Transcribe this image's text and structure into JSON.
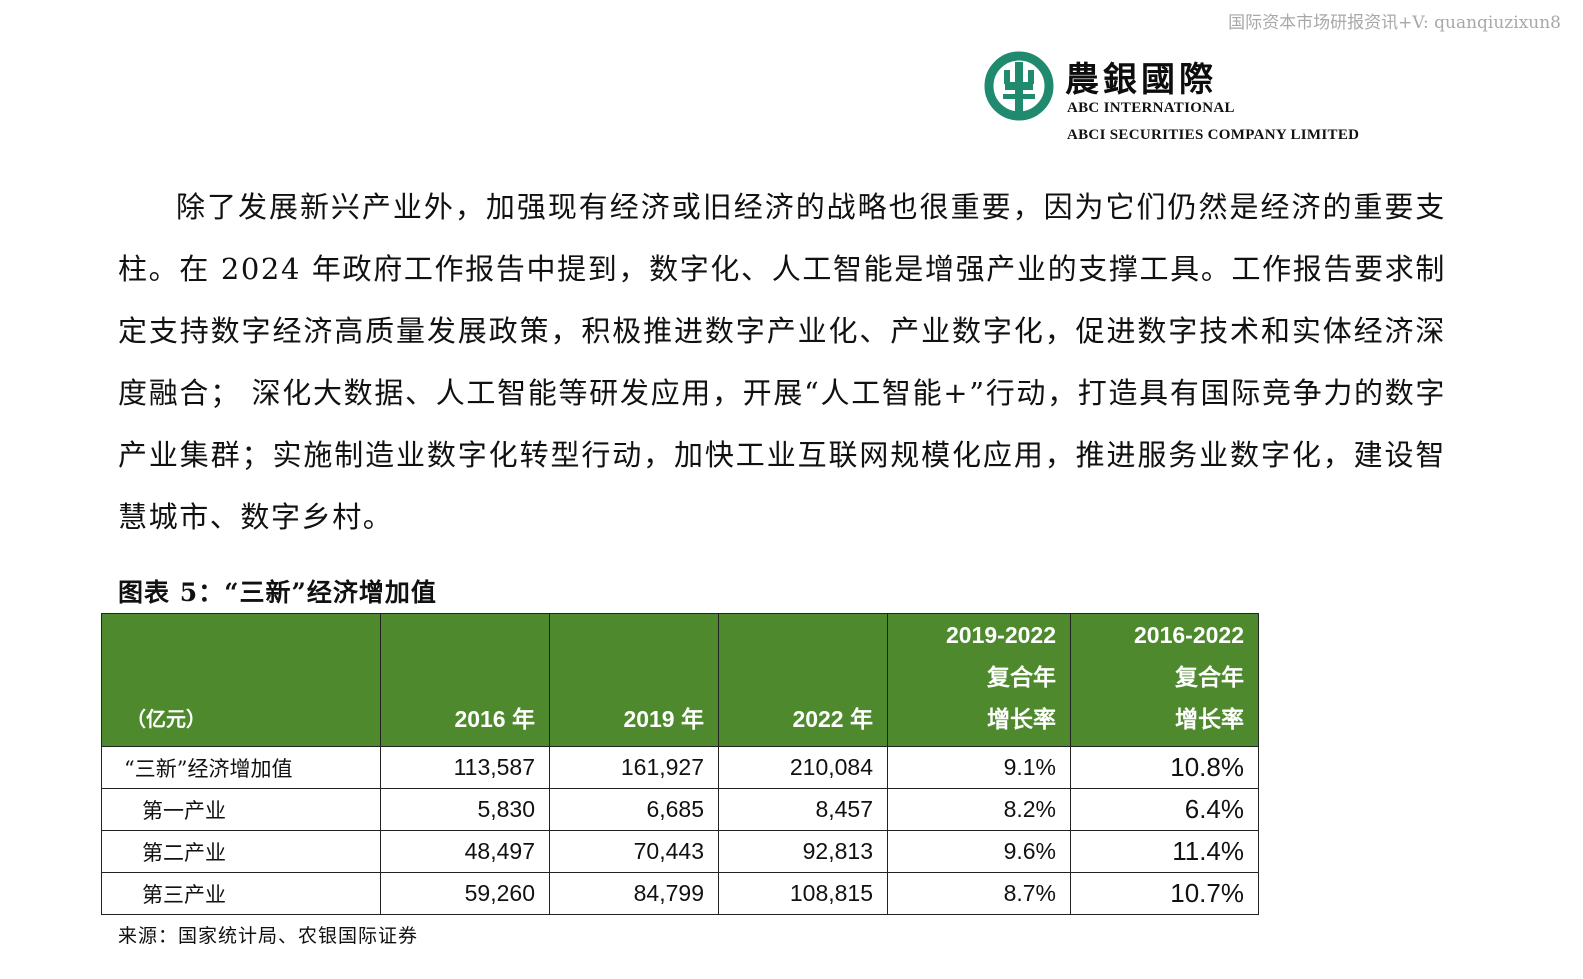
{
  "watermark": "国际资本市场研报资讯+V: quanqiuzixun8",
  "logo": {
    "cn": "農銀國際",
    "en_line1": "ABC INTERNATIONAL",
    "en_line2": "ABCI SECURITIES COMPANY LIMITED",
    "color": "#1f8a6e"
  },
  "paragraph": "除了发展新兴产业外，加强现有经济或旧经济的战略也很重要，因为它们仍然是经济的重要支柱。在 2024 年政府工作报告中提到，数字化、人工智能是增强产业的支撑工具。工作报告要求制定支持数字经济高质量发展政策，积极推进数字产业化、产业数字化，促进数字技术和实体经济深度融合； 深化大数据、人工智能等研发应用，开展“人工智能+”行动，打造具有国际竞争力的数字产业集群；实施制造业数字化转型行动，加快工业互联网规模化应用，推进服务业数字化，建设智慧城市、数字乡村。",
  "table_title": "图表 5：“三新”经济增加值",
  "table": {
    "header_color": "#4e8a2d",
    "headers": {
      "unit": "（亿元）",
      "y2016": "2016 年",
      "y2019": "2019 年",
      "y2022": "2022 年",
      "cagr1_period": "2019-2022",
      "cagr1_l1": "复合年",
      "cagr1_l2": "增长率",
      "cagr2_period": "2016-2022",
      "cagr2_l1": "复合年",
      "cagr2_l2": "增长率"
    },
    "rows": [
      {
        "label": "“三新”经济增加值",
        "v2016": "113,587",
        "v2019": "161,927",
        "v2022": "210,084",
        "cagr1": "9.1%",
        "cagr2": "10.8%"
      },
      {
        "label": "第一产业",
        "v2016": "5,830",
        "v2019": "6,685",
        "v2022": "8,457",
        "cagr1": "8.2%",
        "cagr2": "6.4%"
      },
      {
        "label": "第二产业",
        "v2016": "48,497",
        "v2019": "70,443",
        "v2022": "92,813",
        "cagr1": "9.6%",
        "cagr2": "11.4%"
      },
      {
        "label": "第三产业",
        "v2016": "59,260",
        "v2019": "84,799",
        "v2022": "108,815",
        "cagr1": "8.7%",
        "cagr2": "10.7%"
      }
    ]
  },
  "source": "来源：国家统计局、农银国际证券"
}
